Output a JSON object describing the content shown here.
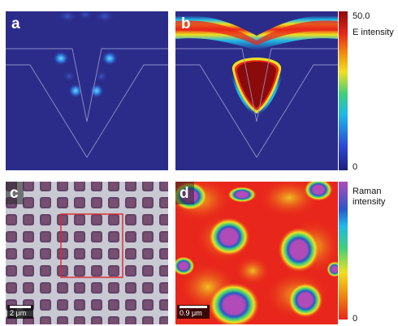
{
  "panels": {
    "a": {
      "label": "a"
    },
    "b": {
      "label": "b"
    },
    "c": {
      "label": "c",
      "scale_bar": "2 μm"
    },
    "d": {
      "label": "d",
      "scale_bar": "0.9 μm"
    }
  },
  "colorbar_top": {
    "max_label": "50.0",
    "title": "E intensity",
    "min_label": "0"
  },
  "colorbar_bottom": {
    "title_line1": "Raman",
    "title_line2": "intensity",
    "min_label": "0"
  },
  "colors": {
    "field_background": "#2b2c8a",
    "hotspot": "#8b0a0a",
    "raman_background": "#e8261b",
    "raman_peak": "#b04bb8"
  }
}
